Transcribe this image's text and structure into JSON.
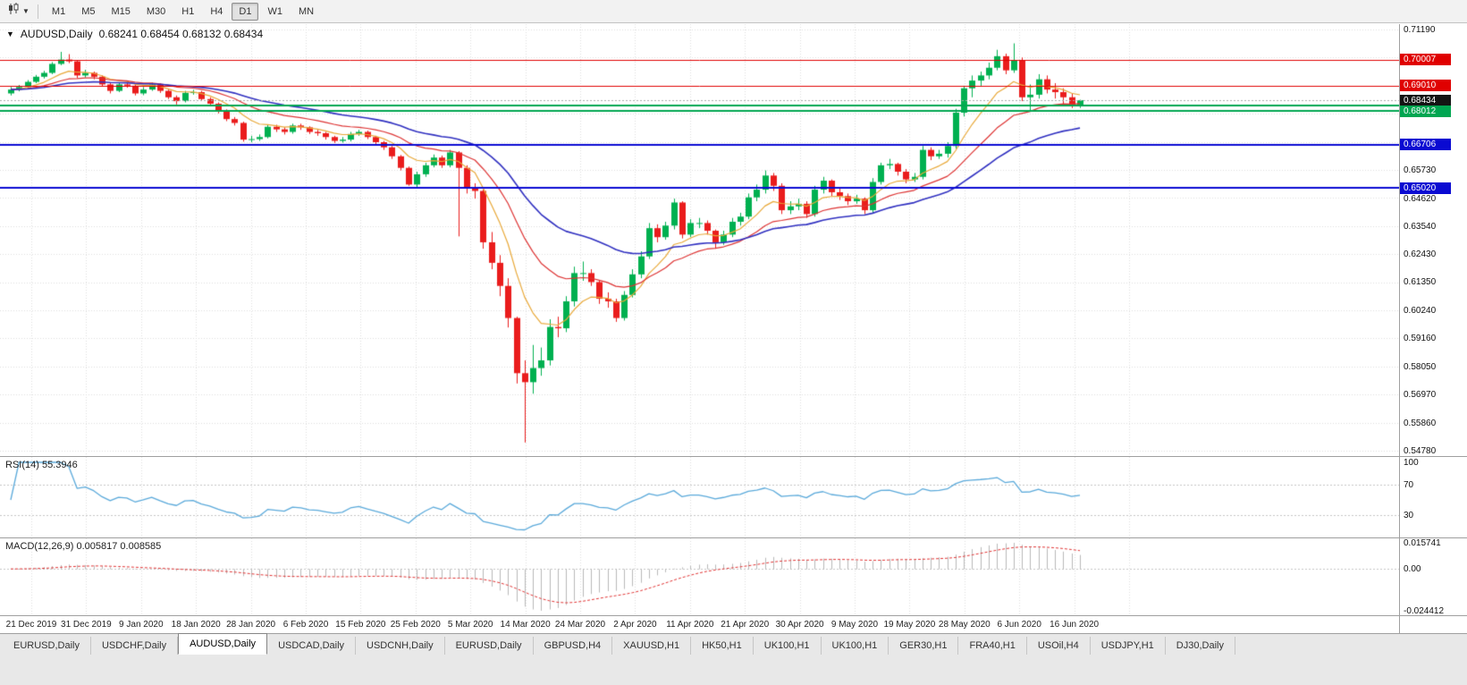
{
  "toolbar": {
    "timeframes": [
      "M1",
      "M5",
      "M15",
      "M30",
      "H1",
      "H4",
      "D1",
      "W1",
      "MN"
    ],
    "active_timeframe": "D1"
  },
  "chart": {
    "title_symbol": "AUDUSD,Daily",
    "title_ohlc": "0.68241 0.68454 0.68132 0.68434"
  },
  "chart_data": {
    "type": "candlestick",
    "symbol": "AUDUSD",
    "timeframe": "Daily",
    "ohlc_current": {
      "open": 0.68241,
      "high": 0.68454,
      "low": 0.68132,
      "close": 0.68434
    },
    "colors": {
      "bull": "#00b050",
      "bear": "#ea1c1c",
      "grid": "#dedede",
      "background": "#ffffff"
    },
    "price_axis": {
      "min": 0.5478,
      "max": 0.7119,
      "visible_labels": [
        "0.71190",
        "0.65730",
        "0.64620",
        "0.63540",
        "0.62430",
        "0.61350",
        "0.60240",
        "0.59160",
        "0.58050",
        "0.56970",
        "0.55860",
        "0.54780"
      ]
    },
    "x_axis_labels": [
      "21 Dec 2019",
      "31 Dec 2019",
      "9 Jan 2020",
      "18 Jan 2020",
      "28 Jan 2020",
      "6 Feb 2020",
      "15 Feb 2020",
      "25 Feb 2020",
      "5 Mar 2020",
      "14 Mar 2020",
      "24 Mar 2020",
      "2 Apr 2020",
      "11 Apr 2020",
      "21 Apr 2020",
      "30 Apr 2020",
      "9 May 2020",
      "19 May 2020",
      "28 May 2020",
      "6 Jun 2020",
      "16 Jun 2020"
    ],
    "horizontal_lines": [
      {
        "price": 0.70007,
        "label": "0.70007",
        "color": "#e00000",
        "width": 1
      },
      {
        "price": 0.6901,
        "label": "0.69010",
        "color": "#e00000",
        "width": 1
      },
      {
        "price": 0.68434,
        "label": "0.68434",
        "color": "#141414",
        "line_color": "#aaaaaa",
        "width": 1,
        "dashed": true
      },
      {
        "price": 0.68231,
        "color": "#00a651",
        "width": 2
      },
      {
        "price": 0.68012,
        "label": "0.68012",
        "color": "#00a651",
        "width": 2
      },
      {
        "price": 0.66706,
        "label": "0.66706",
        "color": "#0a0ad2",
        "width": 2
      },
      {
        "price": 0.6502,
        "label": "0.65020",
        "color": "#0a0ad2",
        "width": 2
      }
    ],
    "moving_averages": [
      {
        "name": "ma-fast",
        "color": "#e8a838"
      },
      {
        "name": "ma-medium",
        "color": "#dd3333"
      },
      {
        "name": "ma-slow",
        "color": "#3030c0"
      }
    ],
    "indicators": {
      "rsi": {
        "label": "RSI(14) 55.3946",
        "period": 14,
        "current": 55.3946,
        "levels": [
          70,
          30
        ],
        "axis_labels": [
          "100",
          "70",
          "30"
        ],
        "color": "#5aa9da"
      },
      "macd": {
        "label": "MACD(12,26,9) 0.005817 0.008585",
        "fast": 12,
        "slow": 26,
        "signal": 9,
        "current_macd": 0.005817,
        "current_signal": 0.008585,
        "axis_labels": [
          "0.015741",
          "0.00",
          "-0.024412"
        ],
        "histogram_color": "#b9b9b9",
        "signal_color": "#e03232"
      }
    },
    "candles": [
      [
        0.687,
        0.6895,
        0.6862,
        0.6885
      ],
      [
        0.6885,
        0.6903,
        0.6878,
        0.6895
      ],
      [
        0.6895,
        0.6922,
        0.689,
        0.6915
      ],
      [
        0.6915,
        0.6942,
        0.691,
        0.6935
      ],
      [
        0.6935,
        0.6958,
        0.6928,
        0.695
      ],
      [
        0.695,
        0.6992,
        0.6945,
        0.6985
      ],
      [
        0.6985,
        0.7032,
        0.698,
        0.7002
      ],
      [
        0.7002,
        0.7023,
        0.6988,
        0.6995
      ],
      [
        0.6995,
        0.7,
        0.693,
        0.694
      ],
      [
        0.694,
        0.6962,
        0.6932,
        0.695
      ],
      [
        0.695,
        0.6955,
        0.6925,
        0.6935
      ],
      [
        0.6935,
        0.694,
        0.6898,
        0.6905
      ],
      [
        0.6905,
        0.6912,
        0.687,
        0.688
      ],
      [
        0.688,
        0.6912,
        0.6875,
        0.6905
      ],
      [
        0.6905,
        0.6918,
        0.6892,
        0.69
      ],
      [
        0.69,
        0.6905,
        0.6862,
        0.687
      ],
      [
        0.687,
        0.6895,
        0.6863,
        0.6885
      ],
      [
        0.6885,
        0.6912,
        0.688,
        0.6905
      ],
      [
        0.6905,
        0.691,
        0.6872,
        0.688
      ],
      [
        0.688,
        0.6885,
        0.6848,
        0.6855
      ],
      [
        0.6855,
        0.6862,
        0.6827,
        0.684
      ],
      [
        0.684,
        0.688,
        0.6835,
        0.6872
      ],
      [
        0.6872,
        0.6884,
        0.6865,
        0.6875
      ],
      [
        0.6875,
        0.688,
        0.684,
        0.6848
      ],
      [
        0.6848,
        0.6855,
        0.6822,
        0.683
      ],
      [
        0.683,
        0.6835,
        0.6792,
        0.68
      ],
      [
        0.68,
        0.6808,
        0.6762,
        0.677
      ],
      [
        0.677,
        0.6778,
        0.6745,
        0.6755
      ],
      [
        0.6755,
        0.676,
        0.6682,
        0.669
      ],
      [
        0.669,
        0.6705,
        0.668,
        0.6692
      ],
      [
        0.6692,
        0.671,
        0.6685,
        0.67
      ],
      [
        0.67,
        0.6748,
        0.6695,
        0.674
      ],
      [
        0.674,
        0.6748,
        0.672,
        0.673
      ],
      [
        0.673,
        0.6738,
        0.671,
        0.672
      ],
      [
        0.672,
        0.6752,
        0.6713,
        0.6745
      ],
      [
        0.6745,
        0.6752,
        0.6728,
        0.6738
      ],
      [
        0.6738,
        0.6742,
        0.6712,
        0.672
      ],
      [
        0.672,
        0.6728,
        0.6705,
        0.6715
      ],
      [
        0.6715,
        0.672,
        0.669,
        0.67
      ],
      [
        0.67,
        0.6705,
        0.6677,
        0.6685
      ],
      [
        0.6685,
        0.67,
        0.6678,
        0.669
      ],
      [
        0.669,
        0.672,
        0.6683,
        0.6712
      ],
      [
        0.6712,
        0.6728,
        0.6705,
        0.672
      ],
      [
        0.672,
        0.6725,
        0.6692,
        0.67
      ],
      [
        0.67,
        0.6705,
        0.667,
        0.668
      ],
      [
        0.668,
        0.6685,
        0.665,
        0.666
      ],
      [
        0.666,
        0.6665,
        0.6615,
        0.6625
      ],
      [
        0.6625,
        0.663,
        0.657,
        0.658
      ],
      [
        0.658,
        0.6585,
        0.651,
        0.6515
      ],
      [
        0.6515,
        0.6565,
        0.6505,
        0.6555
      ],
      [
        0.6555,
        0.66,
        0.6545,
        0.659
      ],
      [
        0.659,
        0.6632,
        0.6582,
        0.662
      ],
      [
        0.662,
        0.6628,
        0.658,
        0.659
      ],
      [
        0.659,
        0.665,
        0.6582,
        0.664
      ],
      [
        0.664,
        0.6645,
        0.6313,
        0.658
      ],
      [
        0.658,
        0.659,
        0.648,
        0.65
      ],
      [
        0.65,
        0.652,
        0.646,
        0.649
      ],
      [
        0.649,
        0.6495,
        0.6265,
        0.629
      ],
      [
        0.629,
        0.633,
        0.6185,
        0.621
      ],
      [
        0.621,
        0.624,
        0.608,
        0.612
      ],
      [
        0.612,
        0.615,
        0.5958,
        0.5995
      ],
      [
        0.5995,
        0.6,
        0.574,
        0.578
      ],
      [
        0.578,
        0.583,
        0.551,
        0.5745
      ],
      [
        0.5745,
        0.589,
        0.57,
        0.58
      ],
      [
        0.58,
        0.588,
        0.577,
        0.583
      ],
      [
        0.583,
        0.599,
        0.581,
        0.596
      ],
      [
        0.596,
        0.6,
        0.592,
        0.5955
      ],
      [
        0.5955,
        0.608,
        0.594,
        0.606
      ],
      [
        0.606,
        0.6195,
        0.604,
        0.617
      ],
      [
        0.617,
        0.6215,
        0.614,
        0.617
      ],
      [
        0.617,
        0.6185,
        0.612,
        0.6135
      ],
      [
        0.6135,
        0.614,
        0.605,
        0.607
      ],
      [
        0.607,
        0.6095,
        0.6035,
        0.606
      ],
      [
        0.606,
        0.607,
        0.598,
        0.5995
      ],
      [
        0.5995,
        0.61,
        0.5985,
        0.6085
      ],
      [
        0.6085,
        0.6185,
        0.6075,
        0.6165
      ],
      [
        0.6165,
        0.6255,
        0.615,
        0.6235
      ],
      [
        0.6235,
        0.6365,
        0.6225,
        0.6345
      ],
      [
        0.6345,
        0.636,
        0.629,
        0.631
      ],
      [
        0.631,
        0.637,
        0.63,
        0.6355
      ],
      [
        0.6355,
        0.646,
        0.634,
        0.6445
      ],
      [
        0.6445,
        0.645,
        0.6305,
        0.632
      ],
      [
        0.632,
        0.638,
        0.631,
        0.6365
      ],
      [
        0.6365,
        0.6385,
        0.6345,
        0.6365
      ],
      [
        0.6365,
        0.6375,
        0.632,
        0.6335
      ],
      [
        0.6335,
        0.634,
        0.6265,
        0.629
      ],
      [
        0.629,
        0.6335,
        0.628,
        0.632
      ],
      [
        0.632,
        0.6385,
        0.631,
        0.637
      ],
      [
        0.637,
        0.6405,
        0.6355,
        0.639
      ],
      [
        0.639,
        0.648,
        0.638,
        0.6465
      ],
      [
        0.6465,
        0.6515,
        0.645,
        0.6495
      ],
      [
        0.6495,
        0.657,
        0.648,
        0.655
      ],
      [
        0.655,
        0.656,
        0.649,
        0.651
      ],
      [
        0.651,
        0.652,
        0.64,
        0.6415
      ],
      [
        0.6415,
        0.645,
        0.64,
        0.643
      ],
      [
        0.643,
        0.646,
        0.6415,
        0.644
      ],
      [
        0.644,
        0.645,
        0.6385,
        0.64
      ],
      [
        0.64,
        0.651,
        0.639,
        0.6495
      ],
      [
        0.6495,
        0.6545,
        0.648,
        0.653
      ],
      [
        0.653,
        0.6535,
        0.647,
        0.6485
      ],
      [
        0.6485,
        0.65,
        0.6455,
        0.647
      ],
      [
        0.647,
        0.648,
        0.6435,
        0.645
      ],
      [
        0.645,
        0.6475,
        0.644,
        0.646
      ],
      [
        0.646,
        0.6465,
        0.64,
        0.6415
      ],
      [
        0.6415,
        0.654,
        0.6405,
        0.6525
      ],
      [
        0.6525,
        0.66,
        0.6515,
        0.659
      ],
      [
        0.659,
        0.6615,
        0.6575,
        0.6595
      ],
      [
        0.6595,
        0.66,
        0.655,
        0.6565
      ],
      [
        0.6565,
        0.6575,
        0.652,
        0.6535
      ],
      [
        0.6535,
        0.656,
        0.6525,
        0.6545
      ],
      [
        0.6545,
        0.6665,
        0.6535,
        0.665
      ],
      [
        0.665,
        0.666,
        0.661,
        0.6625
      ],
      [
        0.6625,
        0.665,
        0.6615,
        0.6635
      ],
      [
        0.6635,
        0.668,
        0.662,
        0.6665
      ],
      [
        0.6665,
        0.681,
        0.6655,
        0.6795
      ],
      [
        0.6795,
        0.69,
        0.678,
        0.689
      ],
      [
        0.689,
        0.694,
        0.6855,
        0.692
      ],
      [
        0.692,
        0.6955,
        0.69,
        0.694
      ],
      [
        0.694,
        0.699,
        0.6925,
        0.697
      ],
      [
        0.697,
        0.704,
        0.696,
        0.7015
      ],
      [
        0.7015,
        0.7025,
        0.6945,
        0.696
      ],
      [
        0.696,
        0.7065,
        0.695,
        0.7
      ],
      [
        0.7,
        0.701,
        0.684,
        0.6855
      ],
      [
        0.6855,
        0.6905,
        0.68,
        0.6865
      ],
      [
        0.6865,
        0.6945,
        0.685,
        0.6925
      ],
      [
        0.6925,
        0.694,
        0.687,
        0.6885
      ],
      [
        0.6885,
        0.691,
        0.685,
        0.6875
      ],
      [
        0.6875,
        0.689,
        0.683,
        0.6855
      ],
      [
        0.6855,
        0.687,
        0.6813,
        0.6824
      ],
      [
        0.68241,
        0.68454,
        0.68132,
        0.68434
      ]
    ]
  },
  "bottom_tabs": {
    "active_index": 2,
    "tabs": [
      "EURUSD,Daily",
      "USDCHF,Daily",
      "AUDUSD,Daily",
      "USDCAD,Daily",
      "USDCNH,Daily",
      "EURUSD,Daily",
      "GBPUSD,H4",
      "XAUUSD,H1",
      "HK50,H1",
      "UK100,H1",
      "UK100,H1",
      "GER30,H1",
      "FRA40,H1",
      "USOil,H4",
      "USDJPY,H1",
      "DJ30,Daily"
    ]
  }
}
